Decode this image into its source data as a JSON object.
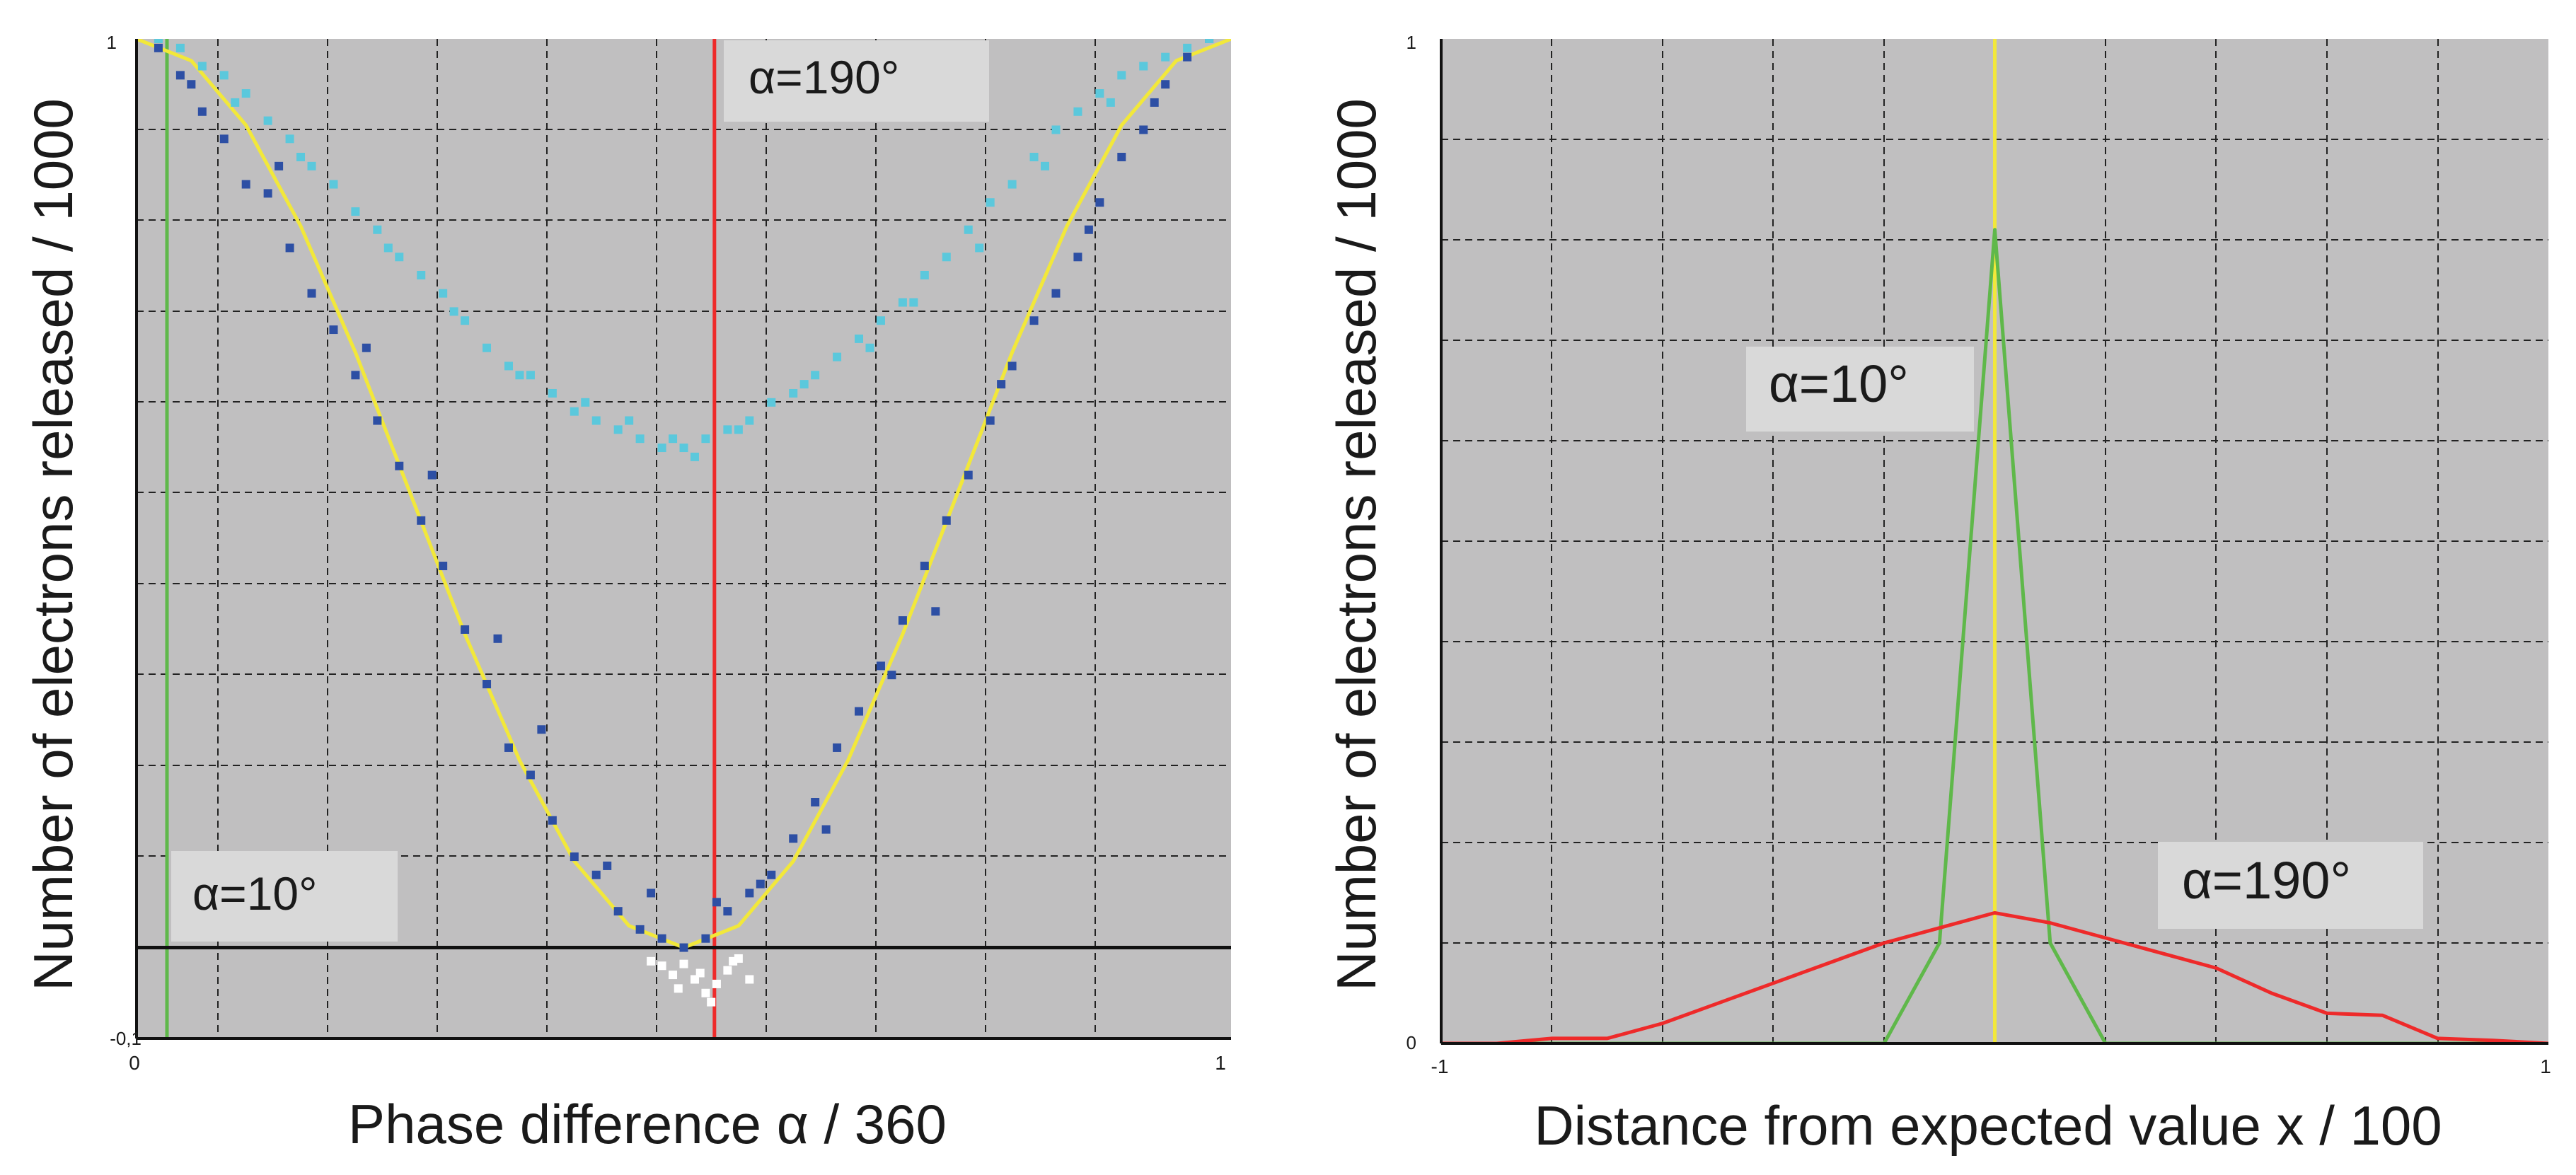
{
  "chart_data": [
    {
      "type": "scatter",
      "xlabel": "Phase difference α / 360",
      "ylabel": "Number of electrons released / 1000",
      "xlim": [
        0,
        1
      ],
      "ylim": [
        -0.1,
        1
      ],
      "x_ticks": [
        "0",
        "1"
      ],
      "y_ticks": [
        "-0,1",
        "1"
      ],
      "grid": true,
      "background": "#c0bfc0",
      "annotations": [
        {
          "text": "α=10°",
          "x": 0.03,
          "y": 0.108
        },
        {
          "text": "α=190°",
          "x": 0.543,
          "y": 0.978
        }
      ],
      "reference_lines": [
        {
          "orientation": "vertical",
          "x": 0.0278,
          "color": "#5fb84a"
        },
        {
          "orientation": "vertical",
          "x": 0.528,
          "color": "#ee2a2a"
        },
        {
          "orientation": "horizontal",
          "y": 0.0,
          "color": "#111111"
        }
      ],
      "series": [
        {
          "kind": "line",
          "color": "#f2e83a",
          "x": [
            0.0,
            0.05,
            0.1,
            0.15,
            0.2,
            0.25,
            0.3,
            0.35,
            0.4,
            0.45,
            0.5,
            0.55,
            0.6,
            0.65,
            0.7,
            0.75,
            0.8,
            0.85,
            0.9,
            0.95,
            1.0
          ],
          "y": [
            1.0,
            0.976,
            0.905,
            0.794,
            0.655,
            0.5,
            0.345,
            0.206,
            0.095,
            0.024,
            0.0,
            0.024,
            0.095,
            0.206,
            0.345,
            0.5,
            0.655,
            0.794,
            0.905,
            0.976,
            1.0
          ]
        },
        {
          "kind": "scatter",
          "color": "#2d4fa4",
          "x": [
            0.02,
            0.04,
            0.06,
            0.08,
            0.1,
            0.12,
            0.14,
            0.16,
            0.18,
            0.2,
            0.22,
            0.24,
            0.26,
            0.28,
            0.3,
            0.32,
            0.34,
            0.36,
            0.38,
            0.4,
            0.42,
            0.44,
            0.46,
            0.48,
            0.5,
            0.52,
            0.54,
            0.56,
            0.58,
            0.6,
            0.62,
            0.64,
            0.66,
            0.68,
            0.7,
            0.72,
            0.74,
            0.76,
            0.78,
            0.8,
            0.82,
            0.84,
            0.86,
            0.88,
            0.9,
            0.92,
            0.94,
            0.96,
            0.98,
            0.05,
            0.13,
            0.21,
            0.27,
            0.33,
            0.37,
            0.43,
            0.47,
            0.53,
            0.57,
            0.63,
            0.69,
            0.73,
            0.79,
            0.87,
            0.93
          ],
          "y": [
            0.99,
            0.96,
            0.92,
            0.89,
            0.84,
            0.83,
            0.77,
            0.72,
            0.68,
            0.63,
            0.58,
            0.53,
            0.47,
            0.42,
            0.35,
            0.29,
            0.22,
            0.19,
            0.14,
            0.1,
            0.08,
            0.04,
            0.02,
            0.01,
            0.0,
            0.01,
            0.04,
            0.06,
            0.08,
            0.12,
            0.16,
            0.22,
            0.26,
            0.31,
            0.36,
            0.42,
            0.47,
            0.52,
            0.58,
            0.64,
            0.69,
            0.72,
            0.76,
            0.82,
            0.87,
            0.9,
            0.95,
            0.98,
            1.0,
            0.95,
            0.86,
            0.66,
            0.52,
            0.34,
            0.24,
            0.09,
            0.06,
            0.05,
            0.07,
            0.13,
            0.3,
            0.37,
            0.62,
            0.79,
            0.93
          ]
        },
        {
          "kind": "scatter",
          "color": "#5bc8dc",
          "x": [
            0.02,
            0.04,
            0.06,
            0.08,
            0.1,
            0.12,
            0.14,
            0.16,
            0.18,
            0.2,
            0.22,
            0.24,
            0.26,
            0.28,
            0.3,
            0.32,
            0.34,
            0.36,
            0.38,
            0.4,
            0.42,
            0.44,
            0.46,
            0.48,
            0.5,
            0.52,
            0.54,
            0.56,
            0.58,
            0.6,
            0.62,
            0.64,
            0.66,
            0.68,
            0.7,
            0.72,
            0.74,
            0.76,
            0.78,
            0.8,
            0.82,
            0.84,
            0.86,
            0.88,
            0.9,
            0.92,
            0.94,
            0.96,
            0.98,
            0.09,
            0.15,
            0.23,
            0.29,
            0.35,
            0.41,
            0.45,
            0.49,
            0.51,
            0.55,
            0.61,
            0.67,
            0.71,
            0.77,
            0.83,
            0.89
          ],
          "y": [
            1.0,
            0.99,
            0.97,
            0.96,
            0.94,
            0.91,
            0.89,
            0.86,
            0.84,
            0.81,
            0.79,
            0.76,
            0.74,
            0.72,
            0.69,
            0.66,
            0.64,
            0.63,
            0.61,
            0.59,
            0.58,
            0.57,
            0.56,
            0.55,
            0.55,
            0.56,
            0.57,
            0.58,
            0.6,
            0.61,
            0.63,
            0.65,
            0.67,
            0.69,
            0.71,
            0.74,
            0.76,
            0.79,
            0.82,
            0.84,
            0.87,
            0.9,
            0.92,
            0.94,
            0.96,
            0.97,
            0.98,
            0.99,
            1.0,
            0.93,
            0.87,
            0.77,
            0.7,
            0.63,
            0.6,
            0.58,
            0.56,
            0.54,
            0.57,
            0.62,
            0.66,
            0.71,
            0.77,
            0.86,
            0.93
          ]
        },
        {
          "kind": "scatter",
          "color": "#ffffff",
          "x": [
            0.47,
            0.48,
            0.49,
            0.5,
            0.51,
            0.52,
            0.53,
            0.54,
            0.55,
            0.56,
            0.495,
            0.515,
            0.525,
            0.545
          ],
          "y": [
            -0.015,
            -0.02,
            -0.03,
            -0.018,
            -0.035,
            -0.05,
            -0.04,
            -0.025,
            -0.012,
            -0.035,
            -0.045,
            -0.028,
            -0.06,
            -0.015
          ]
        }
      ]
    },
    {
      "type": "line",
      "xlabel": "Distance from expected value x / 100",
      "ylabel": "Number of electrons released / 1000",
      "xlim": [
        -1,
        1
      ],
      "ylim": [
        0,
        1
      ],
      "x_ticks": [
        "-1",
        "1"
      ],
      "y_ticks": [
        "0",
        "1"
      ],
      "grid": true,
      "background": "#c0bfc0",
      "annotations": [
        {
          "text": "α=10°",
          "x": -0.45,
          "y": 0.66
        },
        {
          "text": "α=190°",
          "x": 0.3,
          "y": 0.157
        }
      ],
      "reference_lines": [
        {
          "orientation": "vertical",
          "x": 0.0,
          "color": "#f2e83a"
        }
      ],
      "series": [
        {
          "name": "α=10°",
          "color": "#5fb84a",
          "x": [
            -1.0,
            -0.2,
            -0.1,
            0.0,
            0.1,
            0.2,
            1.0
          ],
          "y": [
            0.0,
            0.0,
            0.1,
            0.81,
            0.1,
            0.0,
            0.0
          ]
        },
        {
          "name": "α=190°",
          "color": "#ee2a2a",
          "x": [
            -1.0,
            -0.9,
            -0.8,
            -0.7,
            -0.6,
            -0.5,
            -0.4,
            -0.3,
            -0.2,
            -0.1,
            0.0,
            0.1,
            0.2,
            0.3,
            0.4,
            0.5,
            0.6,
            0.7,
            0.8,
            0.9,
            1.0
          ],
          "y": [
            0.0,
            0.0,
            0.005,
            0.005,
            0.02,
            0.04,
            0.06,
            0.08,
            0.1,
            0.115,
            0.13,
            0.12,
            0.105,
            0.09,
            0.075,
            0.05,
            0.03,
            0.028,
            0.005,
            0.003,
            0.0
          ]
        }
      ]
    }
  ]
}
